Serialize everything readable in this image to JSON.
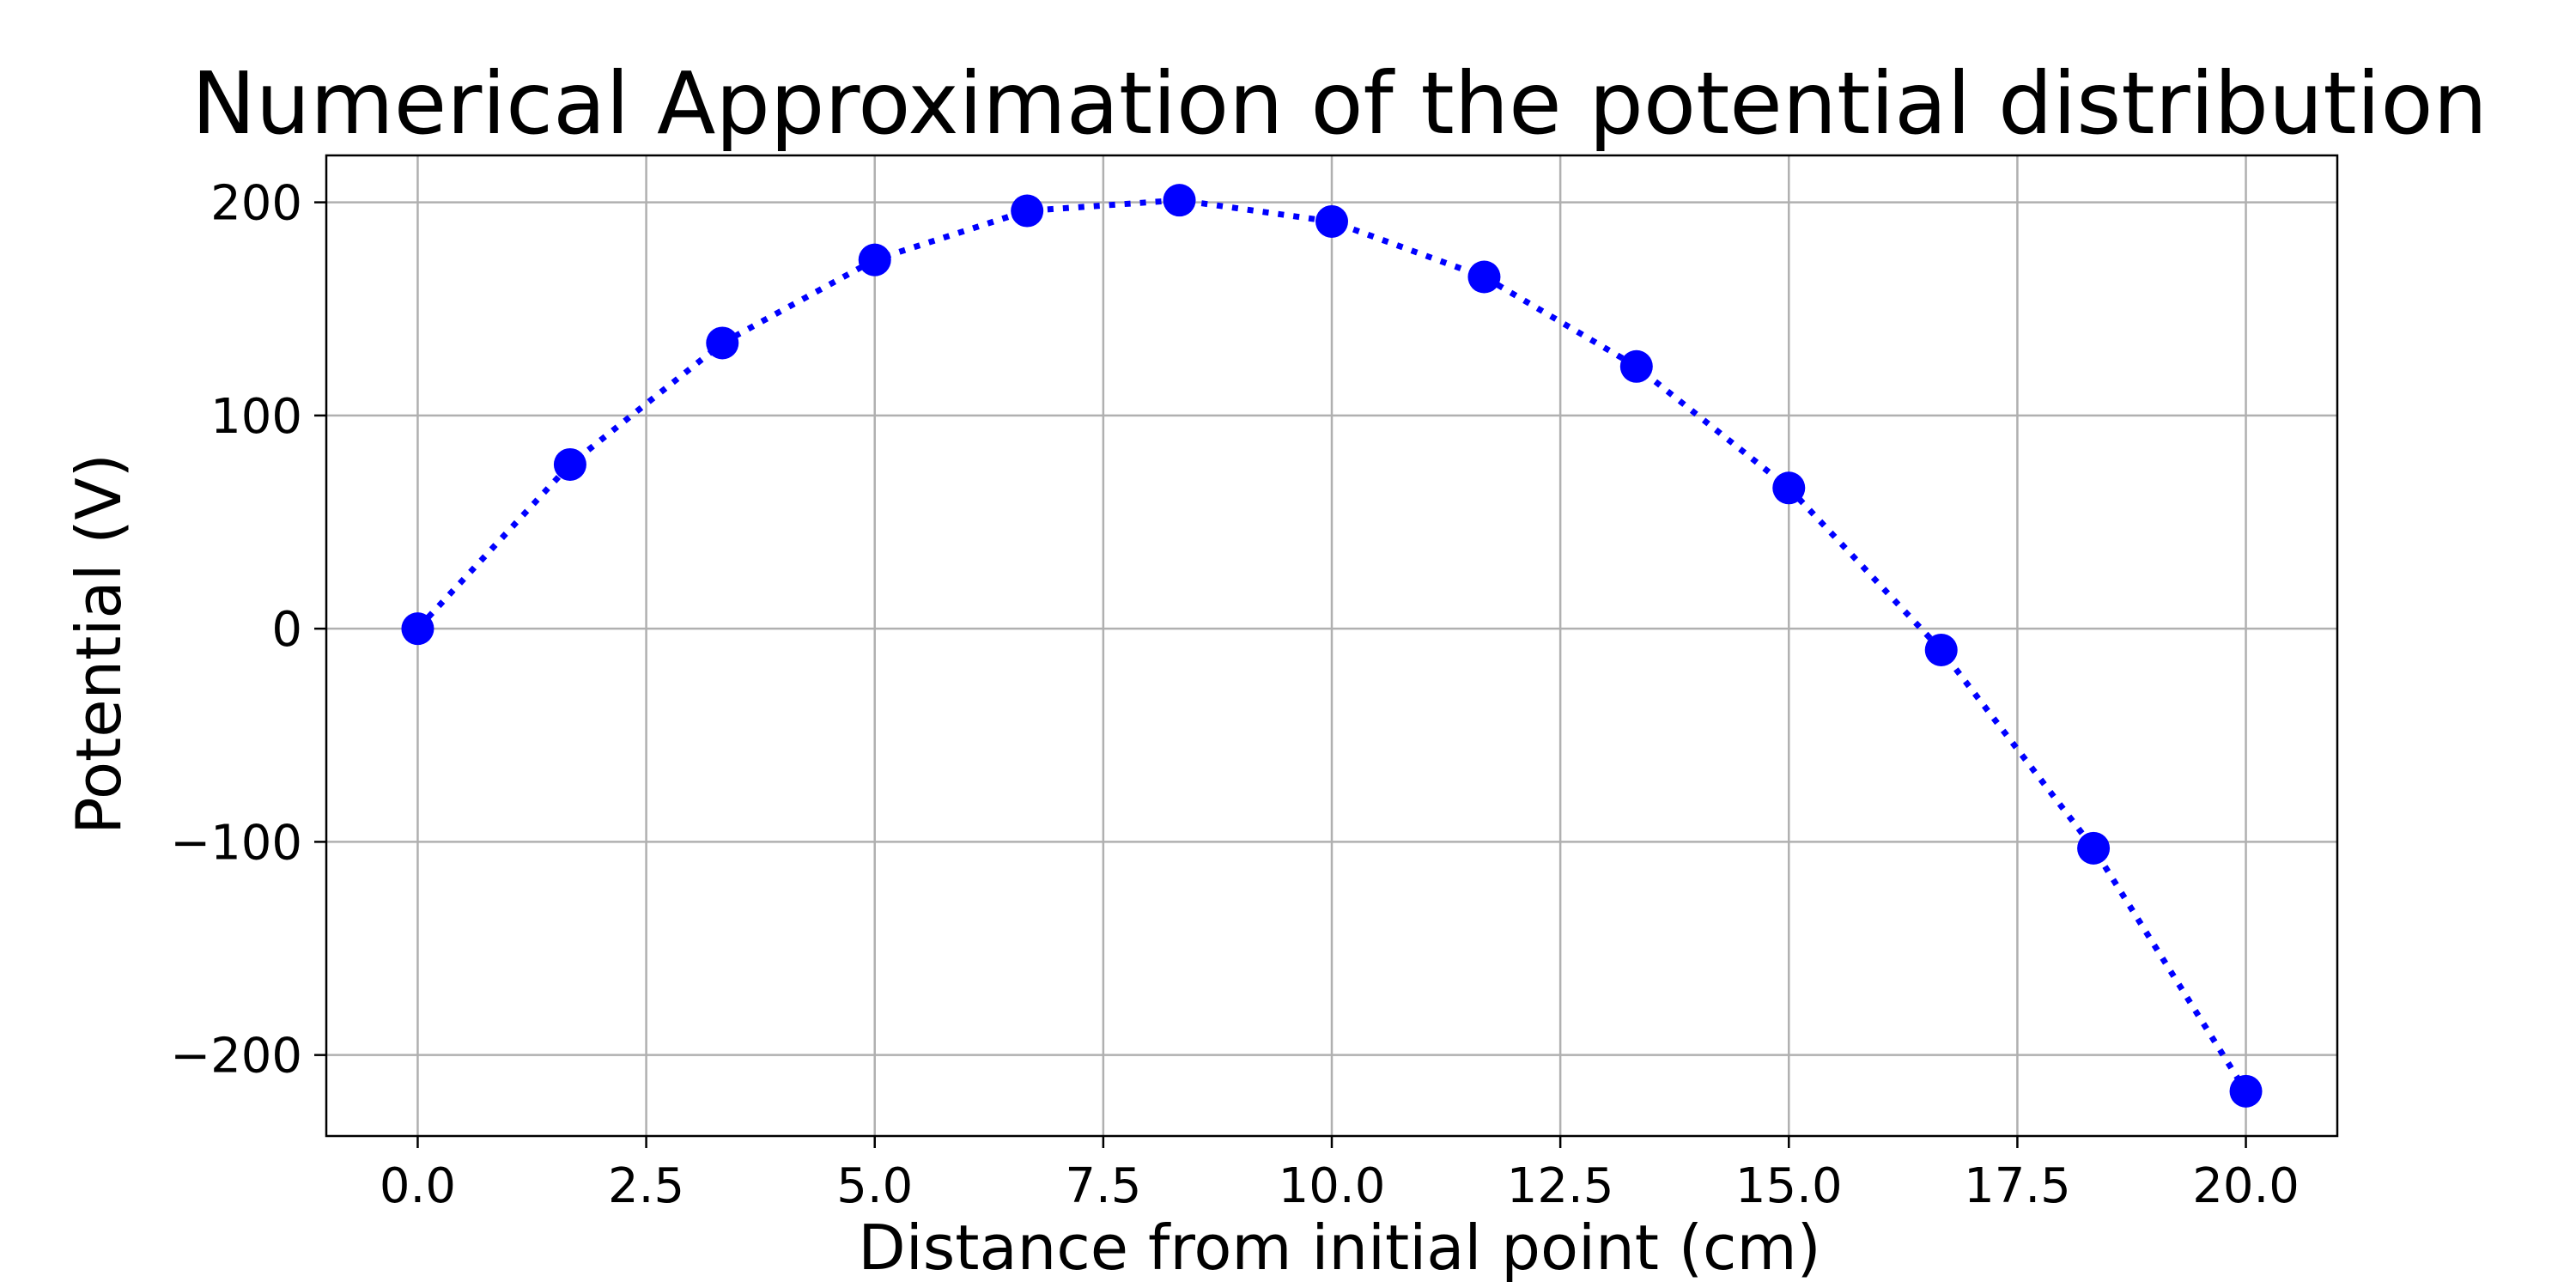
{
  "chart_data": {
    "type": "line",
    "title": "Numerical Approximation of the potential distribution",
    "xlabel": "Distance from initial point (cm)",
    "ylabel": "Potential (V)",
    "x": [
      0.0,
      1.667,
      3.333,
      5.0,
      6.667,
      8.333,
      10.0,
      11.667,
      13.333,
      15.0,
      16.667,
      18.333,
      20.0
    ],
    "series": [
      {
        "values": [
          0,
          77,
          134,
          173,
          196,
          201,
          191,
          165,
          123,
          66,
          -10,
          -103,
          -217
        ],
        "color": "#0000ff",
        "line_style": "dotted",
        "marker": "circle"
      }
    ],
    "xlim": [
      -1.0,
      21.0
    ],
    "ylim": [
      -238,
      222
    ],
    "xticks": [
      0.0,
      2.5,
      5.0,
      7.5,
      10.0,
      12.5,
      15.0,
      17.5,
      20.0
    ],
    "xtick_labels": [
      "0.0",
      "2.5",
      "5.0",
      "7.5",
      "10.0",
      "12.5",
      "15.0",
      "17.5",
      "20.0"
    ],
    "yticks": [
      -200,
      -100,
      0,
      100,
      200
    ],
    "ytick_labels": [
      "−200",
      "−100",
      "0",
      "100",
      "200"
    ],
    "grid": true,
    "legend": "none"
  }
}
